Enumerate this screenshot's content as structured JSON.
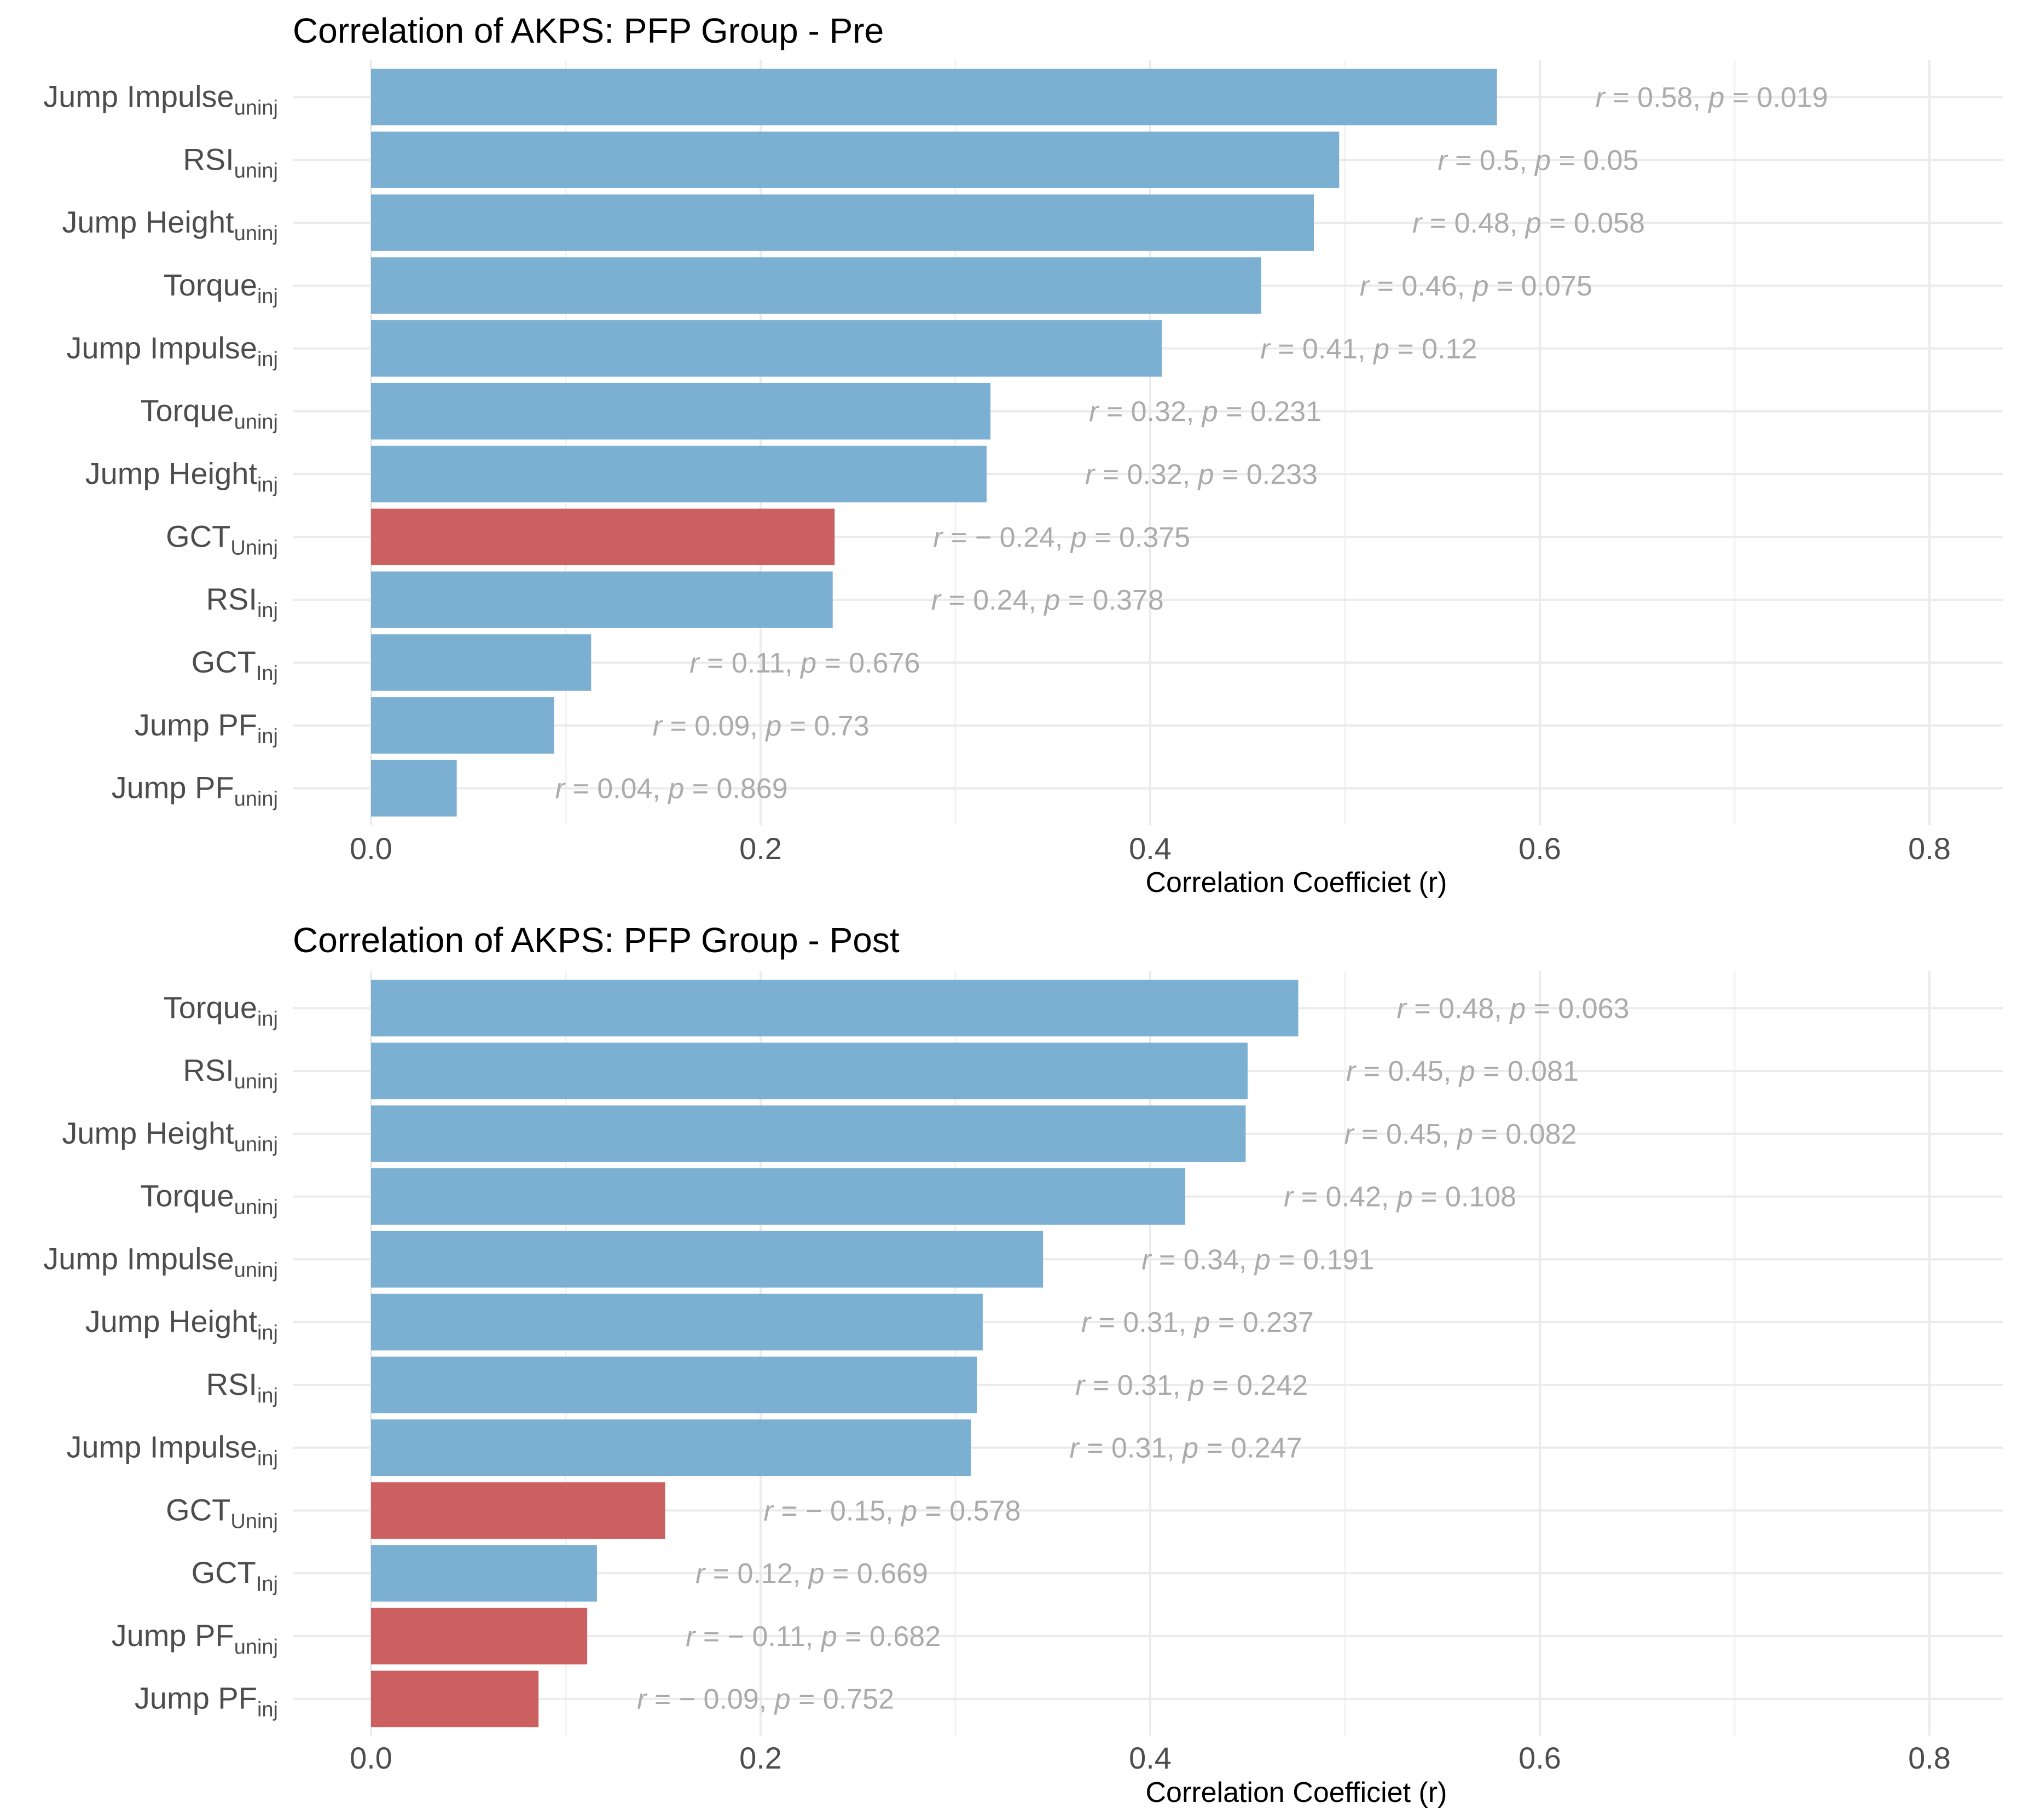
{
  "chart_data": [
    {
      "type": "bar",
      "orientation": "horizontal",
      "title": "Correlation of AKPS: PFP Group - Pre",
      "xlabel": "Correlation Coefficiet (r)",
      "ylabel": "",
      "xlim": [
        0,
        0.8
      ],
      "xticks": [
        "0.0",
        "0.2",
        "0.4",
        "0.6",
        "0.8"
      ],
      "grid": true,
      "legend": "none",
      "colors": {
        "positive": "#7bb0d3",
        "negative": "#cc6060"
      },
      "bars": [
        {
          "base": "Jump Impulse",
          "sub": "uninj",
          "abs_r": 0.578,
          "sign": "positive",
          "annotation": {
            "r": "0.58",
            "p": "0.019"
          }
        },
        {
          "base": "RSI",
          "sub": "uninj",
          "abs_r": 0.497,
          "sign": "positive",
          "annotation": {
            "r": "0.5",
            "p": "0.05"
          }
        },
        {
          "base": "Jump Height",
          "sub": "uninj",
          "abs_r": 0.484,
          "sign": "positive",
          "annotation": {
            "r": "0.48",
            "p": "0.058"
          }
        },
        {
          "base": "Torque",
          "sub": "inj",
          "abs_r": 0.457,
          "sign": "positive",
          "annotation": {
            "r": "0.46",
            "p": "0.075"
          }
        },
        {
          "base": "Jump Impulse",
          "sub": "inj",
          "abs_r": 0.406,
          "sign": "positive",
          "annotation": {
            "r": "0.41",
            "p": "0.12"
          }
        },
        {
          "base": "Torque",
          "sub": "uninj",
          "abs_r": 0.318,
          "sign": "positive",
          "annotation": {
            "r": "0.32",
            "p": "0.231"
          }
        },
        {
          "base": "Jump Height",
          "sub": "inj",
          "abs_r": 0.316,
          "sign": "positive",
          "annotation": {
            "r": "0.32",
            "p": "0.233"
          }
        },
        {
          "base": "GCT",
          "sub": "Uninj",
          "abs_r": 0.238,
          "sign": "negative",
          "annotation": {
            "r": "− 0.24",
            "p": "0.375"
          }
        },
        {
          "base": "RSI",
          "sub": "inj",
          "abs_r": 0.237,
          "sign": "positive",
          "annotation": {
            "r": "0.24",
            "p": "0.378"
          }
        },
        {
          "base": "GCT",
          "sub": "Inj",
          "abs_r": 0.113,
          "sign": "positive",
          "annotation": {
            "r": "0.11",
            "p": "0.676"
          }
        },
        {
          "base": "Jump PF",
          "sub": "inj",
          "abs_r": 0.094,
          "sign": "positive",
          "annotation": {
            "r": "0.09",
            "p": "0.73"
          }
        },
        {
          "base": "Jump PF",
          "sub": "uninj",
          "abs_r": 0.044,
          "sign": "positive",
          "annotation": {
            "r": "0.04",
            "p": "0.869"
          }
        }
      ]
    },
    {
      "type": "bar",
      "orientation": "horizontal",
      "title": "Correlation of AKPS: PFP Group - Post",
      "xlabel": "Correlation Coefficiet (r)",
      "ylabel": "",
      "xlim": [
        0,
        0.8
      ],
      "xticks": [
        "0.0",
        "0.2",
        "0.4",
        "0.6",
        "0.8"
      ],
      "grid": true,
      "legend": "none",
      "colors": {
        "positive": "#7bb0d3",
        "negative": "#cc6060"
      },
      "bars": [
        {
          "base": "Torque",
          "sub": "inj",
          "abs_r": 0.476,
          "sign": "positive",
          "annotation": {
            "r": "0.48",
            "p": "0.063"
          }
        },
        {
          "base": "RSI",
          "sub": "uninj",
          "abs_r": 0.45,
          "sign": "positive",
          "annotation": {
            "r": "0.45",
            "p": "0.081"
          }
        },
        {
          "base": "Jump Height",
          "sub": "uninj",
          "abs_r": 0.449,
          "sign": "positive",
          "annotation": {
            "r": "0.45",
            "p": "0.082"
          }
        },
        {
          "base": "Torque",
          "sub": "uninj",
          "abs_r": 0.418,
          "sign": "positive",
          "annotation": {
            "r": "0.42",
            "p": "0.108"
          }
        },
        {
          "base": "Jump Impulse",
          "sub": "uninj",
          "abs_r": 0.345,
          "sign": "positive",
          "annotation": {
            "r": "0.34",
            "p": "0.191"
          }
        },
        {
          "base": "Jump Height",
          "sub": "inj",
          "abs_r": 0.314,
          "sign": "positive",
          "annotation": {
            "r": "0.31",
            "p": "0.237"
          }
        },
        {
          "base": "RSI",
          "sub": "inj",
          "abs_r": 0.311,
          "sign": "positive",
          "annotation": {
            "r": "0.31",
            "p": "0.242"
          }
        },
        {
          "base": "Jump Impulse",
          "sub": "inj",
          "abs_r": 0.308,
          "sign": "positive",
          "annotation": {
            "r": "0.31",
            "p": "0.247"
          }
        },
        {
          "base": "GCT",
          "sub": "Uninj",
          "abs_r": 0.151,
          "sign": "negative",
          "annotation": {
            "r": "− 0.15",
            "p": "0.578"
          }
        },
        {
          "base": "GCT",
          "sub": "Inj",
          "abs_r": 0.116,
          "sign": "positive",
          "annotation": {
            "r": "0.12",
            "p": "0.669"
          }
        },
        {
          "base": "Jump PF",
          "sub": "uninj",
          "abs_r": 0.111,
          "sign": "negative",
          "annotation": {
            "r": "− 0.11",
            "p": "0.682"
          }
        },
        {
          "base": "Jump PF",
          "sub": "inj",
          "abs_r": 0.086,
          "sign": "negative",
          "annotation": {
            "r": "− 0.09",
            "p": "0.752"
          }
        }
      ]
    }
  ]
}
